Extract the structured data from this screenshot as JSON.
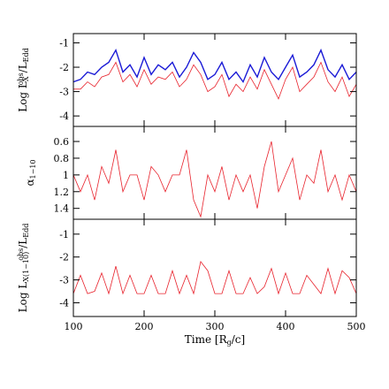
{
  "chart_data": [
    {
      "type": "line",
      "ylabel": [
        "Log L",
        "X",
        "obs",
        "/L",
        "Edd"
      ],
      "x": [
        100,
        110,
        120,
        130,
        140,
        150,
        160,
        170,
        180,
        190,
        200,
        210,
        220,
        230,
        240,
        250,
        260,
        270,
        280,
        290,
        300,
        310,
        320,
        330,
        340,
        350,
        360,
        370,
        380,
        390,
        400,
        410,
        420,
        430,
        440,
        450,
        460,
        470,
        480,
        490,
        500
      ],
      "series": [
        {
          "name": "red",
          "color": "#e8212b",
          "values": [
            -2.9,
            -2.9,
            -2.6,
            -2.8,
            -2.4,
            -2.3,
            -1.8,
            -2.6,
            -2.3,
            -2.8,
            -2.1,
            -2.7,
            -2.4,
            -2.5,
            -2.2,
            -2.8,
            -2.5,
            -1.9,
            -2.3,
            -3.0,
            -2.8,
            -2.3,
            -3.2,
            -2.7,
            -3.0,
            -2.4,
            -2.9,
            -2.1,
            -2.7,
            -3.3,
            -2.5,
            -2.0,
            -3.0,
            -2.7,
            -2.4,
            -1.8,
            -2.6,
            -3.0,
            -2.4,
            -3.2,
            -2.7
          ]
        },
        {
          "name": "blue",
          "color": "#1a1ad6",
          "values": [
            -2.6,
            -2.5,
            -2.2,
            -2.3,
            -2.0,
            -1.8,
            -1.3,
            -2.2,
            -1.9,
            -2.4,
            -1.6,
            -2.3,
            -1.9,
            -2.1,
            -1.8,
            -2.4,
            -2.0,
            -1.4,
            -1.8,
            -2.5,
            -2.3,
            -1.8,
            -2.5,
            -2.2,
            -2.6,
            -1.9,
            -2.4,
            -1.6,
            -2.2,
            -2.5,
            -2.0,
            -1.5,
            -2.4,
            -2.2,
            -1.9,
            -1.3,
            -2.1,
            -2.4,
            -1.9,
            -2.5,
            -2.2
          ]
        }
      ],
      "xlim": [
        100,
        500
      ],
      "xticks": [
        100,
        200,
        300,
        400,
        500
      ],
      "ylim": [
        -4.43,
        -0.62
      ],
      "yticks": [
        -1,
        -2,
        -3,
        -4
      ]
    },
    {
      "type": "line",
      "ylabel": [
        "α",
        "1−10"
      ],
      "x": [
        100,
        110,
        120,
        130,
        140,
        150,
        160,
        170,
        180,
        190,
        200,
        210,
        220,
        230,
        240,
        250,
        260,
        270,
        280,
        290,
        300,
        310,
        320,
        330,
        340,
        350,
        360,
        370,
        380,
        390,
        400,
        410,
        420,
        430,
        440,
        450,
        460,
        470,
        480,
        490,
        500
      ],
      "series": [
        {
          "name": "alpha",
          "color": "#e8212b",
          "values": [
            1.0,
            1.2,
            1.0,
            1.3,
            0.9,
            1.1,
            0.7,
            1.2,
            1.0,
            1.0,
            1.3,
            0.9,
            1.0,
            1.2,
            1.0,
            1.0,
            0.7,
            1.3,
            1.5,
            1.0,
            1.2,
            0.9,
            1.3,
            1.0,
            1.2,
            1.0,
            1.4,
            0.9,
            0.6,
            1.2,
            1.0,
            0.8,
            1.3,
            1.0,
            1.1,
            0.7,
            1.2,
            1.0,
            1.3,
            1.0,
            1.2
          ]
        }
      ],
      "xlim": [
        100,
        500
      ],
      "xticks": [
        100,
        200,
        300,
        400,
        500
      ],
      "ylim": [
        0.42,
        1.53
      ],
      "y_inverted": true,
      "yticks": [
        0.6,
        0.8,
        1,
        1.2,
        1.4
      ]
    },
    {
      "type": "line",
      "ylabel": [
        "Log L",
        "X(1−10)",
        "obs",
        "/L",
        "Edd"
      ],
      "xlabel": [
        "Time [R",
        "g",
        "/c]"
      ],
      "x": [
        100,
        110,
        120,
        130,
        140,
        150,
        160,
        170,
        180,
        190,
        200,
        210,
        220,
        230,
        240,
        250,
        260,
        270,
        280,
        290,
        300,
        310,
        320,
        330,
        340,
        350,
        360,
        370,
        380,
        390,
        400,
        410,
        420,
        430,
        440,
        450,
        460,
        470,
        480,
        490,
        500
      ],
      "series": [
        {
          "name": "red",
          "color": "#e8212b",
          "values": [
            -3.6,
            -2.8,
            -3.6,
            -3.5,
            -2.7,
            -3.6,
            -2.4,
            -3.6,
            -2.8,
            -3.6,
            -3.6,
            -2.8,
            -3.6,
            -3.6,
            -2.6,
            -3.6,
            -2.8,
            -3.6,
            -2.2,
            -2.6,
            -3.6,
            -3.6,
            -2.6,
            -3.6,
            -3.6,
            -2.9,
            -3.6,
            -3.3,
            -2.5,
            -3.6,
            -2.7,
            -3.6,
            -3.6,
            -2.8,
            -3.2,
            -3.6,
            -2.5,
            -3.6,
            -2.6,
            -2.9,
            -3.6
          ]
        }
      ],
      "xlim": [
        100,
        500
      ],
      "xticks": [
        100,
        200,
        300,
        400,
        500
      ],
      "ylim": [
        -4.6,
        -0.35
      ],
      "yticks": [
        -1,
        -2,
        -3,
        -4
      ]
    }
  ]
}
